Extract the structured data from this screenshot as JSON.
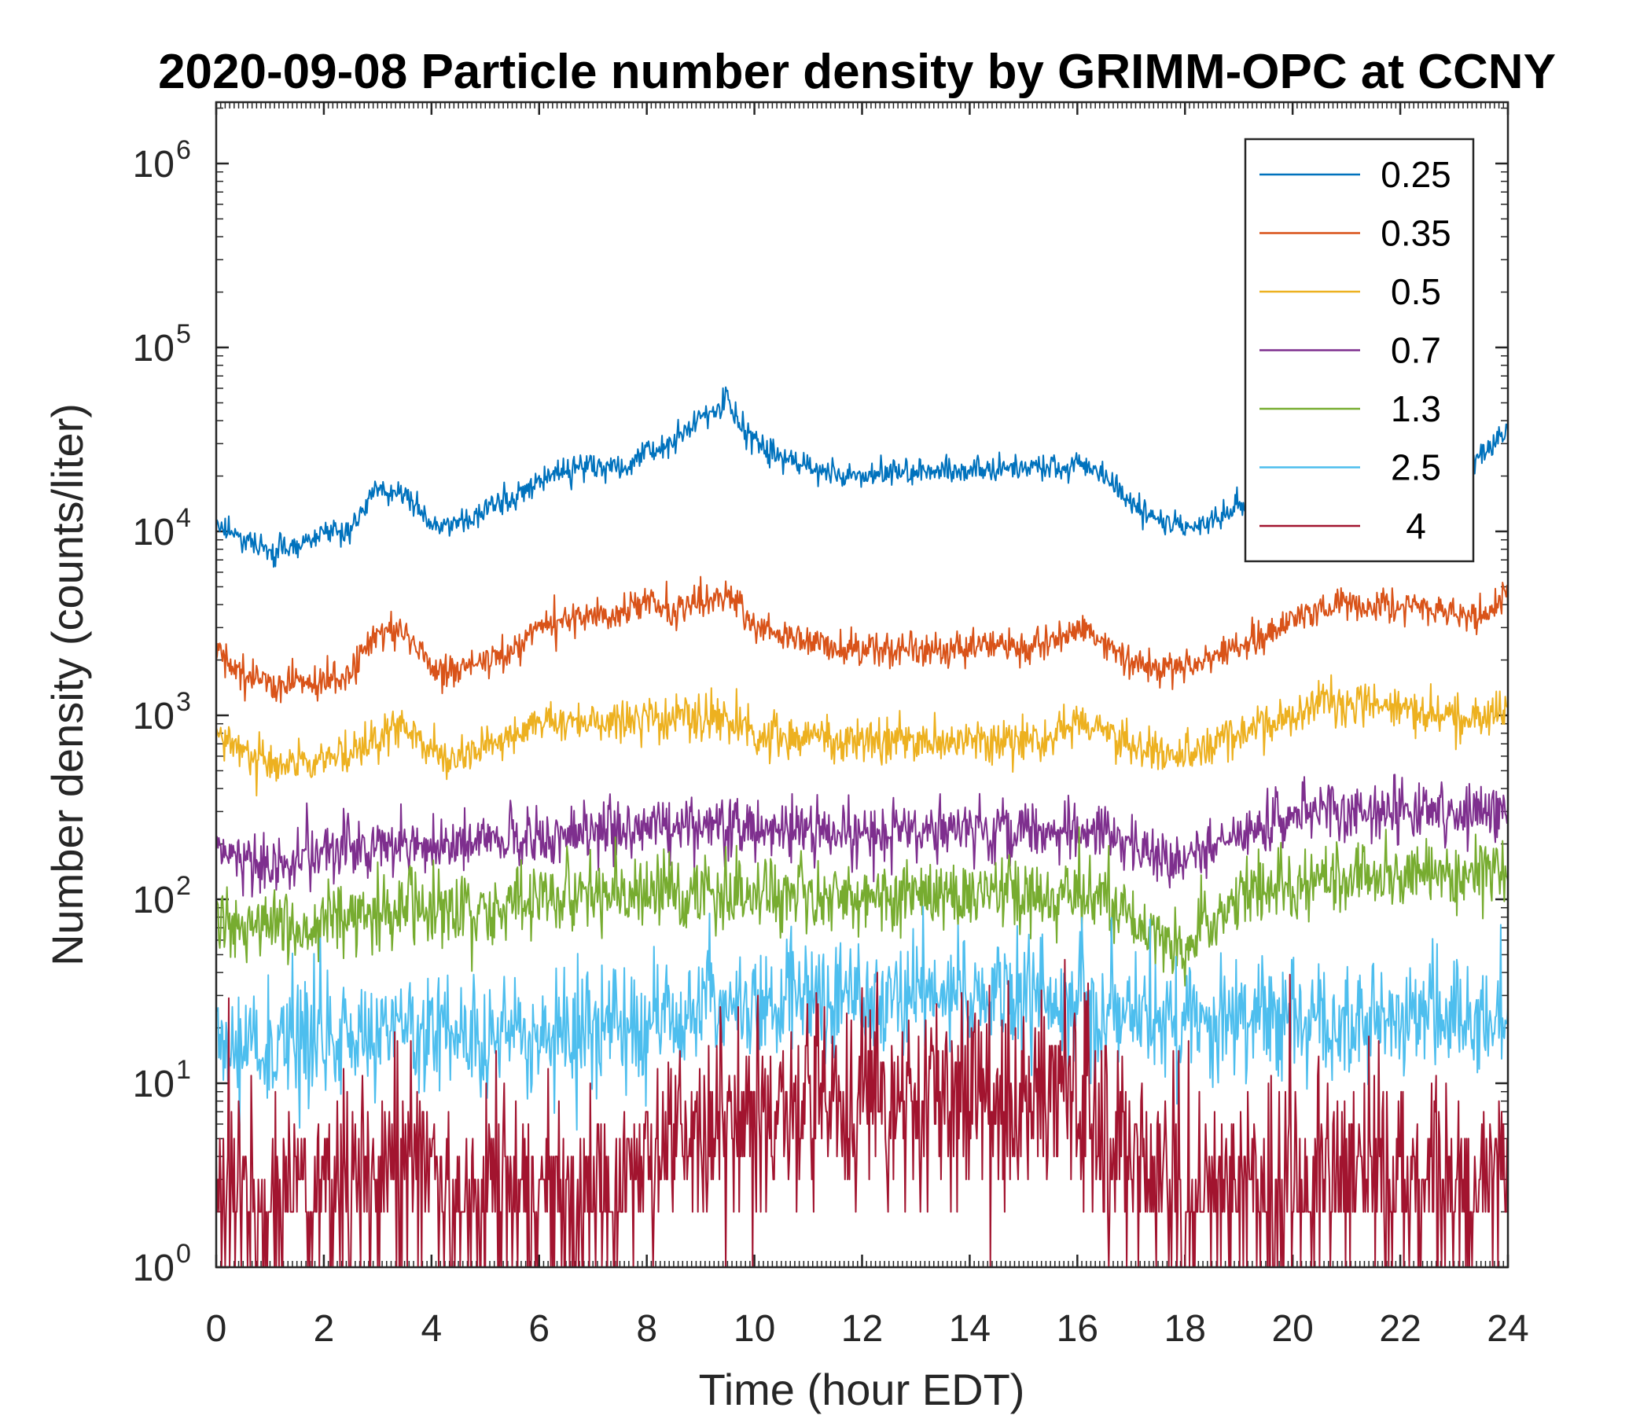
{
  "chart_data": {
    "type": "line",
    "title": "2020-09-08 Particle number density by GRIMM-OPC at CCNY",
    "xlabel": "Time (hour EDT)",
    "ylabel": "Number density (counts/liter)",
    "xlim": [
      0,
      24
    ],
    "ylim": [
      1,
      2000000
    ],
    "yscale": "log",
    "x_ticks": [
      "0",
      "2",
      "4",
      "6",
      "8",
      "10",
      "12",
      "14",
      "16",
      "18",
      "20",
      "22",
      "24"
    ],
    "y_ticks": [
      {
        "base": "10",
        "exp": "0"
      },
      {
        "base": "10",
        "exp": "1"
      },
      {
        "base": "10",
        "exp": "2"
      },
      {
        "base": "10",
        "exp": "3"
      },
      {
        "base": "10",
        "exp": "4"
      },
      {
        "base": "10",
        "exp": "5"
      },
      {
        "base": "10",
        "exp": "6"
      }
    ],
    "legend_position": "top-right",
    "grid": false,
    "x": [
      0,
      0.5,
      1,
      1.5,
      2,
      2.5,
      3,
      3.5,
      4,
      4.5,
      5,
      5.5,
      6,
      6.5,
      7,
      7.5,
      8,
      8.5,
      9,
      9.5,
      10,
      10.5,
      11,
      11.5,
      12,
      12.5,
      13,
      13.5,
      14,
      14.5,
      15,
      15.5,
      16,
      16.5,
      17,
      17.5,
      18,
      18.5,
      19,
      19.5,
      20,
      20.5,
      21,
      21.5,
      22,
      22.5,
      23,
      23.5,
      24
    ],
    "series": [
      {
        "name": "0.25",
        "color": "#0072BD",
        "values": [
          11000,
          9000,
          8000,
          8500,
          9500,
          10000,
          17000,
          16000,
          10500,
          11000,
          13000,
          15000,
          19000,
          22000,
          23000,
          22000,
          27000,
          30000,
          42000,
          50000,
          30000,
          25000,
          23000,
          20000,
          20000,
          21000,
          21500,
          21000,
          22000,
          22000,
          21500,
          22000,
          24000,
          20000,
          14000,
          11500,
          10500,
          11000,
          14000,
          15000,
          14500,
          15000,
          16000,
          20000,
          22000,
          24000,
          25000,
          26000,
          35000
        ]
      },
      {
        "name": "0.35",
        "color": "#D95319",
        "values": [
          2400,
          1700,
          1450,
          1500,
          1500,
          1700,
          2800,
          2900,
          1800,
          1800,
          2000,
          2300,
          2900,
          3300,
          3500,
          3500,
          4200,
          3600,
          4400,
          4500,
          3100,
          2700,
          2500,
          2400,
          2300,
          2300,
          2300,
          2300,
          2400,
          2400,
          2300,
          2500,
          2900,
          2500,
          2000,
          1800,
          1800,
          2100,
          2400,
          2800,
          3400,
          3900,
          4100,
          4000,
          3900,
          3800,
          3600,
          3400,
          4400
        ]
      },
      {
        "name": "0.5",
        "color": "#EDB120",
        "values": [
          850,
          600,
          560,
          560,
          580,
          620,
          800,
          850,
          620,
          620,
          680,
          750,
          900,
          950,
          950,
          950,
          1050,
          950,
          950,
          950,
          800,
          750,
          750,
          720,
          720,
          720,
          720,
          720,
          750,
          750,
          720,
          780,
          900,
          850,
          700,
          620,
          620,
          700,
          800,
          850,
          1000,
          1200,
          1150,
          1150,
          1100,
          1050,
          1000,
          950,
          1150
        ]
      },
      {
        "name": "0.7",
        "color": "#7E2F8E",
        "values": [
          180,
          160,
          150,
          160,
          170,
          180,
          200,
          200,
          190,
          190,
          200,
          210,
          220,
          220,
          230,
          230,
          260,
          250,
          250,
          250,
          230,
          230,
          230,
          230,
          230,
          230,
          230,
          230,
          230,
          230,
          230,
          230,
          240,
          230,
          200,
          170,
          160,
          190,
          220,
          240,
          280,
          300,
          300,
          300,
          300,
          300,
          290,
          280,
          330
        ]
      },
      {
        "name": "1.3",
        "color": "#77AC30",
        "values": [
          80,
          70,
          70,
          75,
          75,
          80,
          85,
          90,
          85,
          85,
          90,
          95,
          100,
          100,
          105,
          105,
          110,
          110,
          110,
          110,
          105,
          105,
          105,
          105,
          105,
          105,
          105,
          105,
          105,
          105,
          105,
          105,
          110,
          100,
          75,
          60,
          60,
          80,
          100,
          110,
          120,
          130,
          135,
          135,
          135,
          135,
          135,
          135,
          150
        ]
      },
      {
        "name": "2.5",
        "color": "#4DBEEE",
        "values": [
          18,
          16,
          16,
          17,
          17,
          18,
          19,
          19,
          18,
          18,
          18,
          18,
          19,
          19,
          20,
          21,
          23,
          24,
          26,
          27,
          27,
          28,
          29,
          29,
          29,
          29,
          29,
          29,
          29,
          29,
          29,
          29,
          28,
          26,
          24,
          22,
          21,
          21,
          22,
          22,
          22,
          22,
          22,
          22,
          22,
          22,
          22,
          22,
          24
        ]
      },
      {
        "name": "4",
        "color": "#A2142F",
        "values": [
          3,
          2.5,
          2.5,
          2.5,
          2.5,
          3,
          3,
          3,
          3,
          2.5,
          2.5,
          2.5,
          2.5,
          2.5,
          2.5,
          2.5,
          3.5,
          4.5,
          5.5,
          6,
          7,
          7.5,
          8,
          8,
          8,
          8,
          8,
          8,
          8,
          8,
          8,
          8,
          7,
          6,
          4.5,
          3.5,
          3,
          3,
          3,
          3,
          3,
          3,
          3,
          3,
          3,
          3,
          3,
          3,
          3.5
        ]
      }
    ]
  }
}
